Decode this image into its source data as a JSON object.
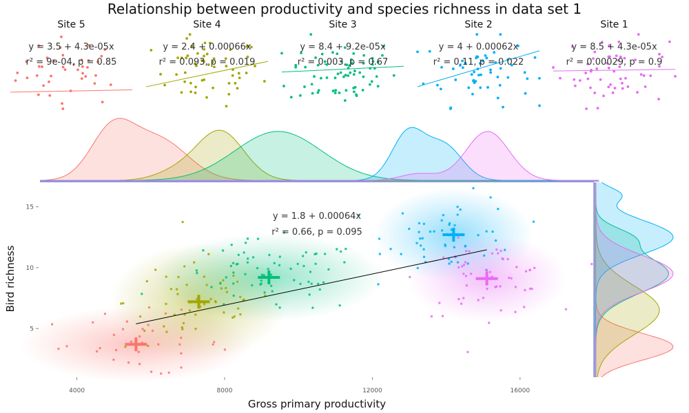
{
  "title": "Relationship between productivity and species richness in data set 1",
  "chart_data": [
    {
      "type": "scatter",
      "panel": "site-regressions",
      "sites": [
        {
          "name": "Site 5",
          "color": "#F8766D",
          "x_range": [
            3000,
            8000
          ],
          "y_range": [
            2,
            9
          ],
          "intercept": 3.5,
          "slope": 4.3e-05,
          "eq": "y = 3.5 + 4.3e-05x",
          "stats": "r² = 9e-04,  p = 0.85",
          "n": 40
        },
        {
          "name": "Site 4",
          "color": "#A3A500",
          "x_range": [
            5500,
            10500
          ],
          "y_range": [
            3,
            13
          ],
          "intercept": 2.4,
          "slope": 0.00066,
          "eq": "y = 2.4 + 0.00066x",
          "stats": "r² = 0.093,  p = 0.019",
          "n": 55
        },
        {
          "name": "Site 3",
          "color": "#00BF7D",
          "x_range": [
            6000,
            12500
          ],
          "y_range": [
            5,
            13
          ],
          "intercept": 8.4,
          "slope": 9.2e-05,
          "eq": "y = 8.4 + 9.2e-05x",
          "stats": "r² = 0.003,  p = 0.67",
          "n": 70
        },
        {
          "name": "Site 2",
          "color": "#00B0F6",
          "x_range": [
            12000,
            18000
          ],
          "y_range": [
            9,
            17
          ],
          "intercept": 4.0,
          "slope": 0.00062,
          "eq": "y = 4 + 0.00062x",
          "stats": "r² = 0.11,  p = 0.022",
          "n": 55
        },
        {
          "name": "Site 1",
          "color": "#E76BF3",
          "x_range": [
            13000,
            17000
          ],
          "y_range": [
            5,
            13
          ],
          "intercept": 8.5,
          "slope": 4.3e-05,
          "eq": "y = 8.5 + 4.3e-05x",
          "stats": "r² = 0.00029,  p = 0.9",
          "n": 55
        }
      ]
    },
    {
      "type": "area",
      "panel": "x-density",
      "x_range": [
        3000,
        18500
      ],
      "series": [
        {
          "site": "Site 5",
          "peaks": [
            {
              "mu": 5000,
              "sd": 600,
              "h": 0.85
            },
            {
              "mu": 6300,
              "sd": 800,
              "h": 0.7
            }
          ]
        },
        {
          "site": "Site 4",
          "peaks": [
            {
              "mu": 8000,
              "sd": 650,
              "h": 0.85
            },
            {
              "mu": 6800,
              "sd": 600,
              "h": 0.15
            }
          ]
        },
        {
          "site": "Site 3",
          "peaks": [
            {
              "mu": 9600,
              "sd": 1200,
              "h": 0.85
            }
          ]
        },
        {
          "site": "Site 2",
          "peaks": [
            {
              "mu": 13200,
              "sd": 450,
              "h": 0.82
            },
            {
              "mu": 14200,
              "sd": 500,
              "h": 0.6
            }
          ]
        },
        {
          "site": "Site 1",
          "peaks": [
            {
              "mu": 15400,
              "sd": 600,
              "h": 0.85
            },
            {
              "mu": 13500,
              "sd": 500,
              "h": 0.12
            }
          ]
        }
      ]
    },
    {
      "type": "scatter",
      "panel": "main",
      "xlabel": "Gross primary productivity",
      "ylabel": "Bird richness",
      "xlim": [
        3000,
        18000
      ],
      "ylim": [
        1,
        17
      ],
      "x_ticks": [
        4000,
        8000,
        12000,
        16000
      ],
      "x_tick_labels": [
        "4000",
        "8000",
        "12000",
        "16000"
      ],
      "y_ticks": [
        5,
        10,
        15
      ],
      "y_tick_labels": [
        "5",
        "10",
        "15"
      ],
      "overall_fit": {
        "intercept": 1.8,
        "slope": 0.00064,
        "x_range": [
          5600,
          15100
        ]
      },
      "overall_eq": "y = 1.8 + 0.00064x",
      "overall_stats": "r² = 0.66,  p = 0.095",
      "means": [
        {
          "site": "Site 5",
          "x": 5600,
          "y": 3.7
        },
        {
          "site": "Site 4",
          "x": 7300,
          "y": 7.2
        },
        {
          "site": "Site 3",
          "x": 9200,
          "y": 9.2
        },
        {
          "site": "Site 2",
          "x": 14200,
          "y": 12.7
        },
        {
          "site": "Site 1",
          "x": 15100,
          "y": 9.1
        }
      ],
      "clusters": [
        {
          "site": "Site 5",
          "sx": 1300,
          "sy": 1.3,
          "n": 40
        },
        {
          "site": "Site 4",
          "sx": 1000,
          "sy": 2.0,
          "n": 55
        },
        {
          "site": "Site 3",
          "sx": 1300,
          "sy": 1.5,
          "n": 70
        },
        {
          "site": "Site 2",
          "sx": 900,
          "sy": 1.6,
          "n": 55
        },
        {
          "site": "Site 1",
          "sx": 900,
          "sy": 1.5,
          "n": 55
        }
      ]
    },
    {
      "type": "area",
      "panel": "y-density",
      "y_range": [
        1,
        17
      ],
      "series": [
        {
          "site": "Site 5",
          "peaks": [
            {
              "mu": 3.5,
              "sd": 1.1,
              "h": 0.85
            }
          ]
        },
        {
          "site": "Site 4",
          "peaks": [
            {
              "mu": 6.5,
              "sd": 2.0,
              "h": 0.7
            }
          ]
        },
        {
          "site": "Site 3",
          "peaks": [
            {
              "mu": 9.5,
              "sd": 1.6,
              "h": 0.8
            },
            {
              "mu": 12.5,
              "sd": 0.8,
              "h": 0.3
            }
          ]
        },
        {
          "site": "Site 2",
          "peaks": [
            {
              "mu": 12.5,
              "sd": 1.4,
              "h": 0.85
            },
            {
              "mu": 16,
              "sd": 0.6,
              "h": 0.25
            }
          ]
        },
        {
          "site": "Site 1",
          "peaks": [
            {
              "mu": 9.5,
              "sd": 1.5,
              "h": 0.85
            }
          ]
        }
      ]
    }
  ]
}
